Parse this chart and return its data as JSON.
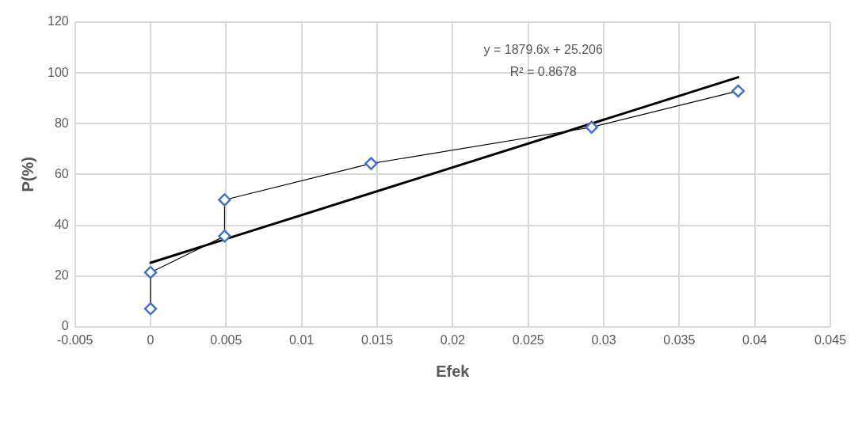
{
  "chart_data": {
    "type": "line",
    "xlabel": "Efek",
    "ylabel": "P(%)",
    "xlim": [
      -0.005,
      0.045
    ],
    "xticks": [
      -0.005,
      0,
      0.005,
      0.01,
      0.015,
      0.02,
      0.025,
      0.03,
      0.035,
      0.04,
      0.045
    ],
    "ylim": [
      0,
      120
    ],
    "yticks": [
      0,
      20,
      40,
      60,
      80,
      100,
      120
    ],
    "series": [
      {
        "color": "#4472c4",
        "x": [
          0,
          0,
          0.0049,
          0.0049,
          0.0146,
          0.0292,
          0.0389
        ],
        "values": [
          7.1,
          21.4,
          35.7,
          50,
          64.3,
          78.6,
          92.9
        ],
        "marker": "diamond"
      },
      {
        "color": "#000000",
        "x": [
          0,
          0.0389
        ],
        "values": [
          25.2,
          98.3
        ],
        "marker": "none"
      }
    ],
    "annotations": [
      "y = 1879.6x + 25.206",
      "R² = 0.8678"
    ],
    "grid": true,
    "legend": false
  }
}
